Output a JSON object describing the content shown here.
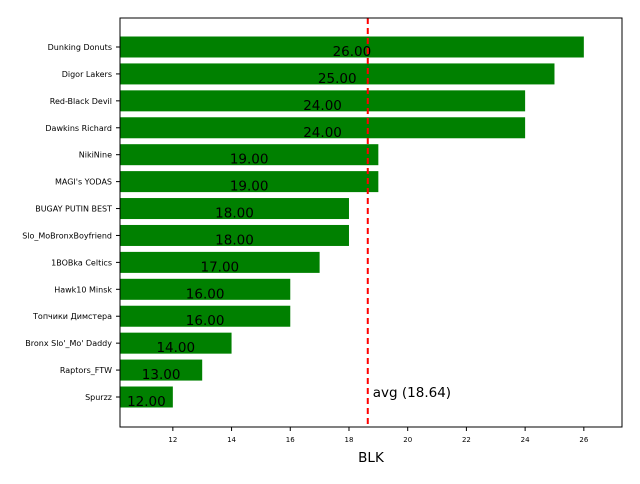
{
  "chart_data": {
    "type": "bar",
    "orientation": "horizontal",
    "title": "",
    "xlabel": "BLK",
    "ylabel": "",
    "xlim": [
      10.2,
      27.3
    ],
    "xticks": [
      12,
      14,
      16,
      18,
      20,
      22,
      24,
      26
    ],
    "grid": false,
    "bar_color": "#008000",
    "categories": [
      "Dunking Donuts",
      "Digor Lakers",
      "Red-Black Devil",
      "Dawkins Richard",
      "NikiNine",
      "MAGI's YODAS",
      "BUGAY PUTIN BEST",
      "Slo_MoBronxBoyfriend",
      "1BOBka Celtics",
      "Hawk10 Minsk",
      "Топчики Димстера",
      "Bronx Slo'_Mo' Daddy",
      "Raptors_FTW",
      "Spurzz"
    ],
    "values": [
      26,
      25,
      24,
      24,
      19,
      19,
      18,
      18,
      17,
      16,
      16,
      14,
      13,
      12
    ],
    "data_labels": [
      "26.00",
      "25.00",
      "24.00",
      "24.00",
      "19.00",
      "19.00",
      "18.00",
      "18.00",
      "17.00",
      "16.00",
      "16.00",
      "14.00",
      "13.00",
      "12.00"
    ],
    "reference_line": {
      "value": 18.64,
      "label": "avg (18.64)",
      "color": "#ff0000",
      "style": "dashed"
    }
  }
}
